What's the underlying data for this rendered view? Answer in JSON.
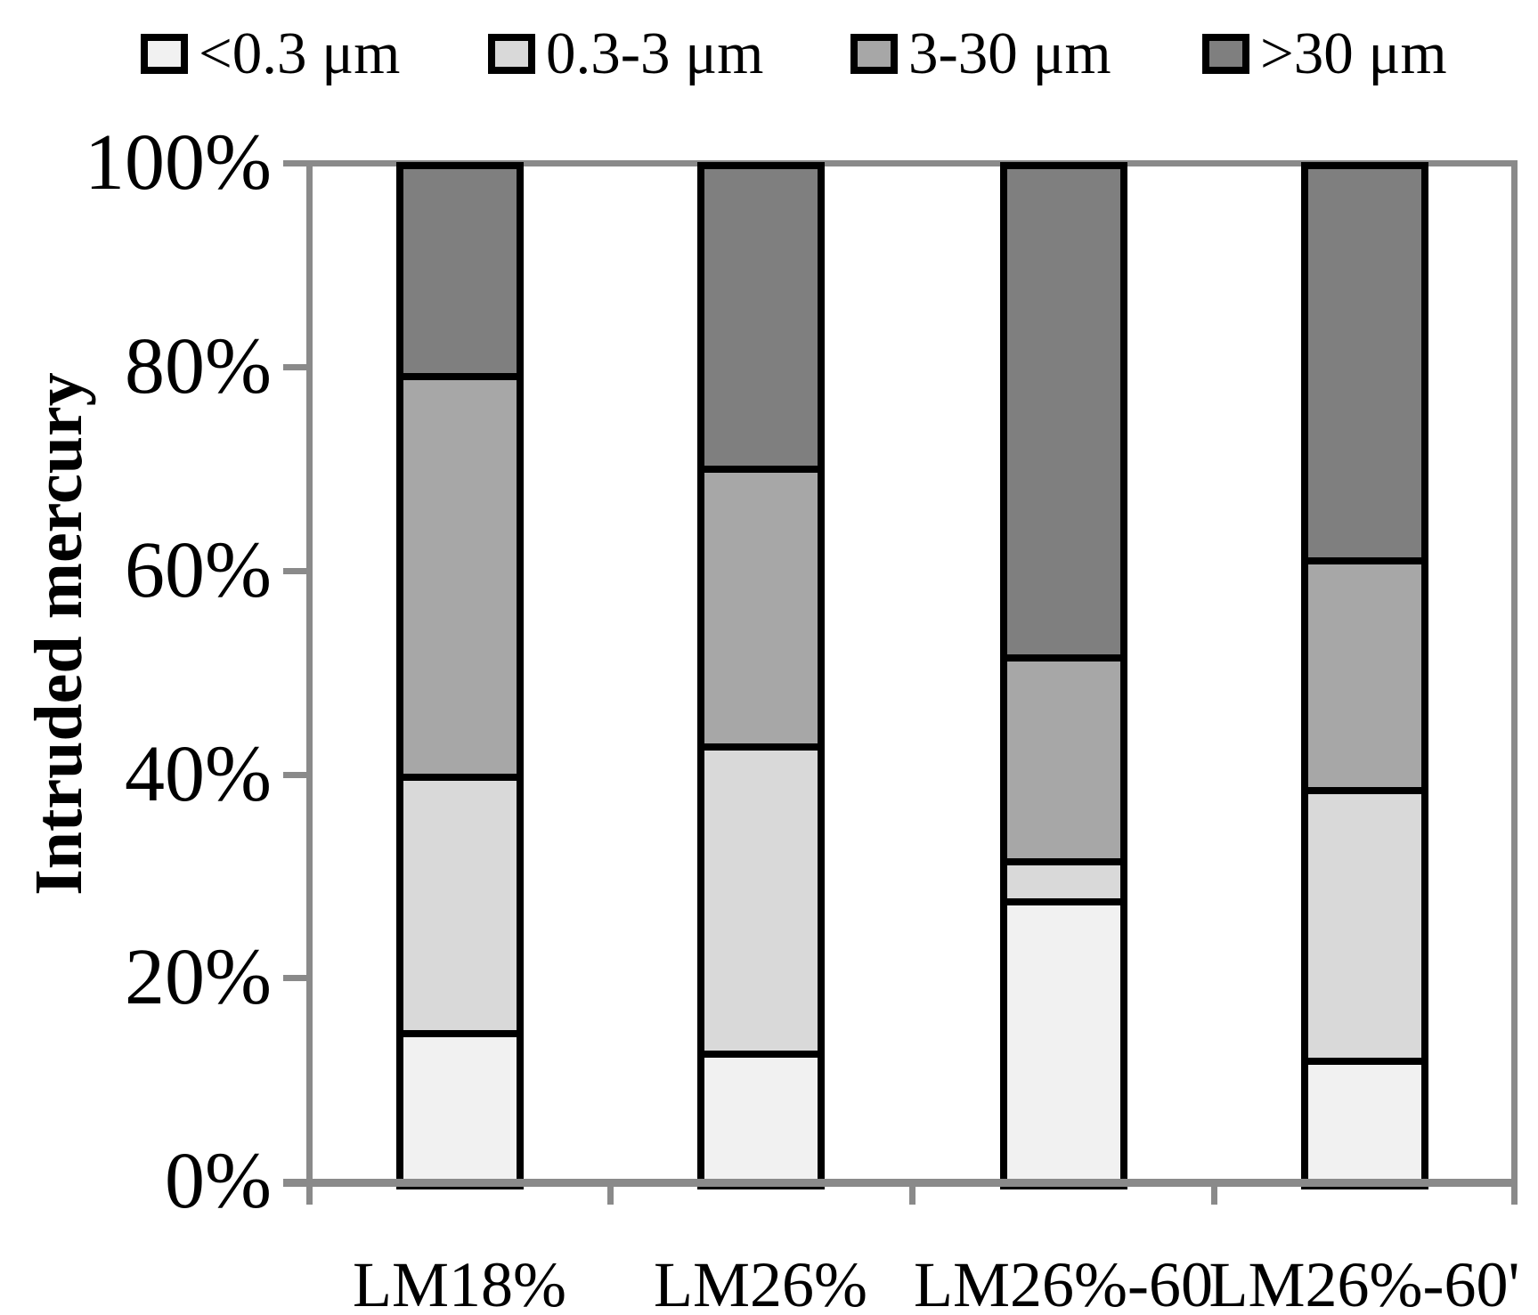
{
  "chart_data": {
    "type": "bar",
    "stacked": true,
    "orientation": "vertical",
    "title": "",
    "xlabel": "",
    "ylabel": "Intruded mercury",
    "categories": [
      "LM18%",
      "LM26%",
      "LM26%-60",
      "LM26%-60'"
    ],
    "series": [
      {
        "name": "<0.3 μm",
        "color": "#f1f1f1",
        "values": [
          15.0,
          13.0,
          28.0,
          12.3
        ]
      },
      {
        "name": "0.3-3 μm",
        "color": "#d9d9d9",
        "values": [
          25.3,
          30.3,
          4.0,
          26.7
        ]
      },
      {
        "name": "3-30 μm",
        "color": "#a7a7a7",
        "values": [
          39.6,
          27.4,
          20.1,
          22.7
        ]
      },
      {
        "name": ">30 μm",
        "color": "#7f7f7f",
        "values": [
          20.1,
          29.3,
          47.9,
          38.3
        ]
      }
    ],
    "y_tick_labels": [
      "100%",
      "80%",
      "60%",
      "40%",
      "20%",
      "0%"
    ],
    "ylim": [
      0,
      100
    ],
    "legend_position": "top",
    "grid": false,
    "bar_border_color": "#000000",
    "axis_color": "#8a8a8a"
  }
}
